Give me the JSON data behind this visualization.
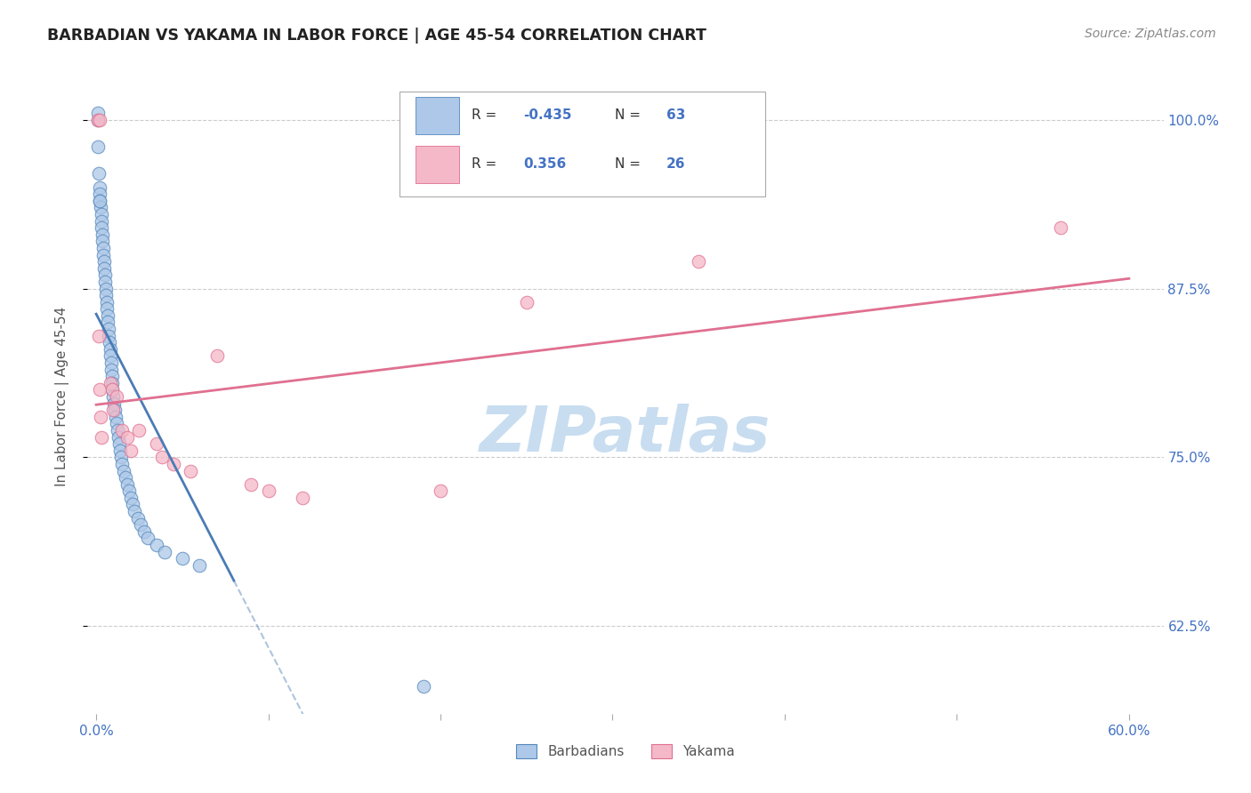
{
  "title": "BARBADIAN VS YAKAMA IN LABOR FORCE | AGE 45-54 CORRELATION CHART",
  "source": "Source: ZipAtlas.com",
  "ylabel": "In Labor Force | Age 45-54",
  "legend_label1": "Barbadians",
  "legend_label2": "Yakama",
  "r_blue": "-0.435",
  "n_blue": "63",
  "r_pink": "0.356",
  "n_pink": "26",
  "blue_fill": "#adc8e8",
  "blue_edge": "#5588bb",
  "pink_fill": "#f4b8c8",
  "pink_edge": "#e07090",
  "blue_line": "#4a7cb5",
  "pink_line": "#e07090",
  "watermark": "ZIPatlas",
  "watermark_color": "#c8ddf0",
  "grid_color": "#cccccc",
  "tick_color": "#4472c4",
  "title_color": "#222222",
  "source_color": "#888888",
  "ylabel_color": "#555555",
  "xmin": -0.5,
  "xmax": 62,
  "ymin": 56,
  "ymax": 103,
  "ytick_pos": [
    62.5,
    75.0,
    87.5,
    100.0
  ],
  "ytick_labels": [
    "62.5%",
    "75.0%",
    "87.5%",
    "100.0%"
  ],
  "xtick_left_label": "0.0%",
  "xtick_right_label": "60.0%",
  "blue_x": [
    0.08,
    0.12,
    0.15,
    0.18,
    0.2,
    0.22,
    0.25,
    0.28,
    0.3,
    0.32,
    0.35,
    0.38,
    0.4,
    0.42,
    0.45,
    0.48,
    0.5,
    0.52,
    0.55,
    0.58,
    0.6,
    0.62,
    0.65,
    0.68,
    0.7,
    0.72,
    0.75,
    0.8,
    0.82,
    0.85,
    0.88,
    0.9,
    0.92,
    0.95,
    1.0,
    1.05,
    1.1,
    1.15,
    1.2,
    1.25,
    1.3,
    1.35,
    1.4,
    1.45,
    1.5,
    1.6,
    1.7,
    1.8,
    1.9,
    2.0,
    2.1,
    2.2,
    2.4,
    2.6,
    2.8,
    3.0,
    3.5,
    4.0,
    5.0,
    6.0,
    0.1,
    0.2,
    19.0
  ],
  "blue_y": [
    100.0,
    98.0,
    96.0,
    95.0,
    94.5,
    94.0,
    93.5,
    93.0,
    92.5,
    92.0,
    91.5,
    91.0,
    90.5,
    90.0,
    89.5,
    89.0,
    88.5,
    88.0,
    87.5,
    87.0,
    86.5,
    86.0,
    85.5,
    85.0,
    84.5,
    84.0,
    83.5,
    83.0,
    82.5,
    82.0,
    81.5,
    81.0,
    80.5,
    80.0,
    79.5,
    79.0,
    78.5,
    78.0,
    77.5,
    77.0,
    76.5,
    76.0,
    75.5,
    75.0,
    74.5,
    74.0,
    73.5,
    73.0,
    72.5,
    72.0,
    71.5,
    71.0,
    70.5,
    70.0,
    69.5,
    69.0,
    68.5,
    68.0,
    67.5,
    67.0,
    100.5,
    94.0,
    58.0
  ],
  "pink_x": [
    0.1,
    0.15,
    0.18,
    0.22,
    0.25,
    0.3,
    0.8,
    0.9,
    1.0,
    1.2,
    1.5,
    1.8,
    2.0,
    2.5,
    3.5,
    3.8,
    4.5,
    5.5,
    7.0,
    9.0,
    10.0,
    12.0,
    20.0,
    25.0,
    35.0,
    56.0
  ],
  "pink_y": [
    100.0,
    84.0,
    80.0,
    100.0,
    78.0,
    76.5,
    80.5,
    80.0,
    78.5,
    79.5,
    77.0,
    76.5,
    75.5,
    77.0,
    76.0,
    75.0,
    74.5,
    74.0,
    82.5,
    73.0,
    72.5,
    72.0,
    72.5,
    86.5,
    89.5,
    92.0
  ]
}
